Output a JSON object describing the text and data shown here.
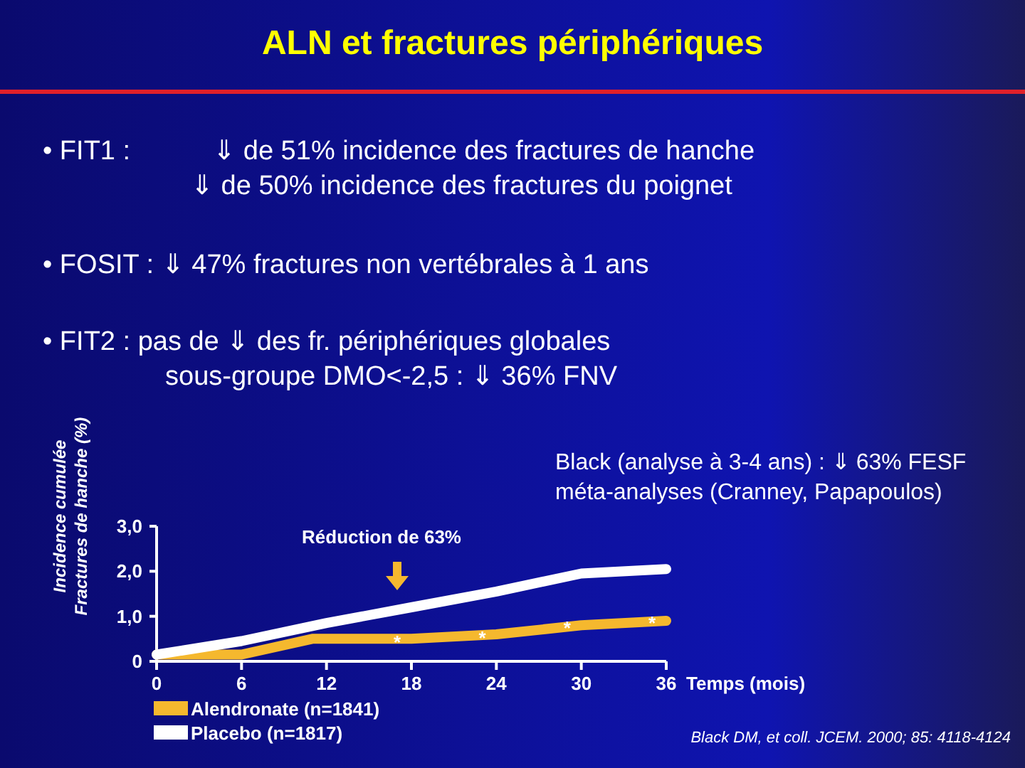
{
  "chart_data": {
    "type": "line",
    "title": "ALN et fractures périphériques",
    "xlabel": "Temps (mois)",
    "ylabel": "Incidence cumulée\nFractures de hanche (%)",
    "x": [
      0,
      6,
      12,
      18,
      24,
      30,
      36
    ],
    "xlim": [
      0,
      36
    ],
    "xticks": [
      0,
      6,
      12,
      18,
      24,
      30,
      36
    ],
    "ylim": [
      0,
      3
    ],
    "yticks": [
      {
        "value": 0,
        "label": "0"
      },
      {
        "value": 1,
        "label": "1,0"
      },
      {
        "value": 2,
        "label": "2,0"
      },
      {
        "value": 3,
        "label": "3,0"
      }
    ],
    "series": [
      {
        "name": "Alendronate (n=1841)",
        "color": "#f5b82e",
        "x": [
          0,
          6,
          11,
          18,
          24,
          30,
          36
        ],
        "values": [
          0.15,
          0.15,
          0.5,
          0.5,
          0.6,
          0.8,
          0.9
        ]
      },
      {
        "name": "Placebo (n=1817)",
        "color": "#ffffff",
        "values": [
          0.15,
          0.45,
          0.85,
          1.2,
          1.55,
          1.95,
          2.05
        ]
      }
    ],
    "legend": "bottom left",
    "marker": "none",
    "line_style": "solid",
    "grid": false,
    "annotations": [
      "• FIT1 :           ⇓ de 51% incidence des fractures de hanche\n⇓ de 50% incidence des fractures du poignet",
      "• FOSIT : ⇓ 47% fractures non vertébrales à 1 ans",
      "• FIT2 : pas de ⇓ des fr. périphériques globales\nsous-groupe DMO<-2,5 : ⇓ 36% FNV",
      "Black (analyse à 3-4 ans) : ⇓ 63% FESF\nméta-analyses (Cranney, Papapoulos)",
      "Black DM, et coll. JCEM. 2000; 85: 4118-4124",
      "Réduction de 63%",
      {
        "text": "*",
        "x": 17,
        "y": 0.6
      },
      {
        "text": "*",
        "x": 23,
        "y": 0.7
      },
      {
        "text": "*",
        "x": 29,
        "y": 0.92
      },
      {
        "text": "*",
        "x": 35,
        "y": 1.02
      }
    ]
  }
}
